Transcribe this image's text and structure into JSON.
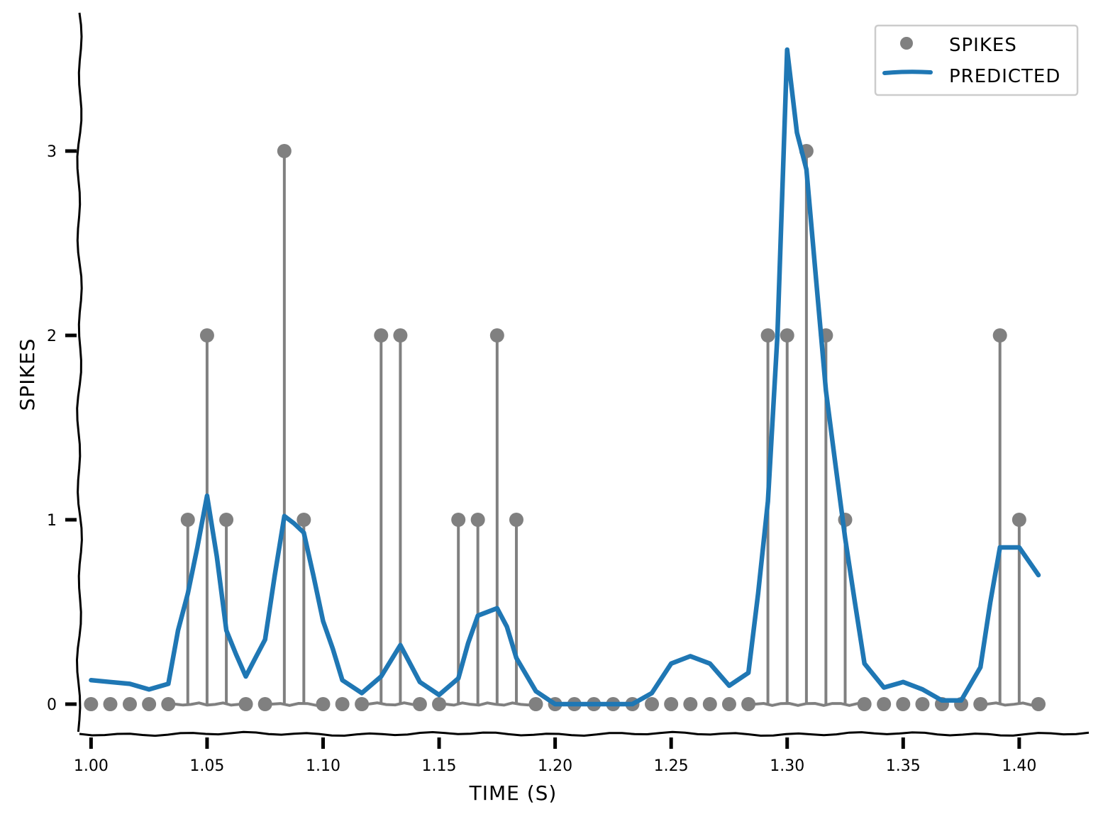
{
  "chart_data": {
    "type": "line",
    "title": "",
    "xlabel": "TIME (S)",
    "ylabel": "SPIKES",
    "xlim": [
      0.995,
      1.43
    ],
    "ylim": [
      -0.15,
      3.75
    ],
    "xticks": [
      1.0,
      1.05,
      1.1,
      1.15,
      1.2,
      1.25,
      1.3,
      1.35,
      1.4
    ],
    "xtick_labels": [
      "1.00",
      "1.05",
      "1.10",
      "1.15",
      "1.20",
      "1.25",
      "1.30",
      "1.35",
      "1.40"
    ],
    "yticks": [
      0,
      1,
      2,
      3
    ],
    "ytick_labels": [
      "0",
      "1",
      "2",
      "3"
    ],
    "grid": false,
    "legend_position": "top-right",
    "series": [
      {
        "name": "SPIKES",
        "kind": "stem",
        "color": "#808080",
        "x": [
          1.0,
          1.0083,
          1.0167,
          1.025,
          1.0333,
          1.0417,
          1.05,
          1.0583,
          1.0667,
          1.075,
          1.0833,
          1.0917,
          1.1,
          1.1083,
          1.1167,
          1.125,
          1.1333,
          1.1417,
          1.15,
          1.1583,
          1.1667,
          1.175,
          1.1833,
          1.1917,
          1.2,
          1.2083,
          1.2167,
          1.225,
          1.2333,
          1.2417,
          1.25,
          1.2583,
          1.2667,
          1.275,
          1.2833,
          1.2917,
          1.3,
          1.3083,
          1.3167,
          1.325,
          1.3333,
          1.3417,
          1.35,
          1.3583,
          1.3667,
          1.375,
          1.3833,
          1.3917,
          1.4,
          1.4083
        ],
        "y": [
          0,
          0,
          0,
          0,
          0,
          1,
          2,
          1,
          0,
          0,
          3,
          1,
          0,
          0,
          0,
          2,
          2,
          0,
          0,
          1,
          1,
          2,
          1,
          0,
          0,
          0,
          0,
          0,
          0,
          0,
          0,
          0,
          0,
          0,
          0,
          2,
          2,
          3,
          2,
          1,
          0,
          0,
          0,
          0,
          0,
          0,
          0,
          2,
          1,
          0
        ]
      },
      {
        "name": "PREDICTED",
        "kind": "line",
        "color": "#1f77b4",
        "x": [
          1.0,
          1.0083,
          1.0167,
          1.025,
          1.0333,
          1.0375,
          1.0417,
          1.0458,
          1.05,
          1.0542,
          1.0583,
          1.0625,
          1.0667,
          1.0708,
          1.075,
          1.0792,
          1.0833,
          1.0875,
          1.0917,
          1.0958,
          1.1,
          1.1042,
          1.1083,
          1.1167,
          1.125,
          1.1333,
          1.1417,
          1.15,
          1.1583,
          1.1625,
          1.1667,
          1.175,
          1.1792,
          1.1833,
          1.1917,
          1.2,
          1.2083,
          1.2167,
          1.225,
          1.2333,
          1.2417,
          1.25,
          1.2583,
          1.2667,
          1.275,
          1.2833,
          1.2875,
          1.2917,
          1.2958,
          1.3,
          1.3042,
          1.3083,
          1.3125,
          1.3167,
          1.3208,
          1.325,
          1.3292,
          1.3333,
          1.3417,
          1.35,
          1.3583,
          1.3667,
          1.375,
          1.3833,
          1.3875,
          1.3917,
          1.4,
          1.4083
        ],
        "y": [
          0.13,
          0.12,
          0.11,
          0.08,
          0.11,
          0.4,
          0.6,
          0.85,
          1.13,
          0.8,
          0.4,
          0.27,
          0.15,
          0.25,
          0.35,
          0.7,
          1.02,
          0.98,
          0.93,
          0.7,
          0.45,
          0.3,
          0.13,
          0.06,
          0.15,
          0.32,
          0.12,
          0.05,
          0.14,
          0.33,
          0.48,
          0.52,
          0.42,
          0.25,
          0.07,
          0.0,
          0.0,
          0.0,
          0.0,
          0.0,
          0.06,
          0.22,
          0.26,
          0.22,
          0.1,
          0.17,
          0.6,
          1.1,
          2.0,
          3.55,
          3.1,
          2.9,
          2.3,
          1.7,
          1.3,
          0.9,
          0.55,
          0.22,
          0.09,
          0.12,
          0.08,
          0.02,
          0.02,
          0.2,
          0.55,
          0.85,
          0.85,
          0.7
        ]
      }
    ]
  }
}
